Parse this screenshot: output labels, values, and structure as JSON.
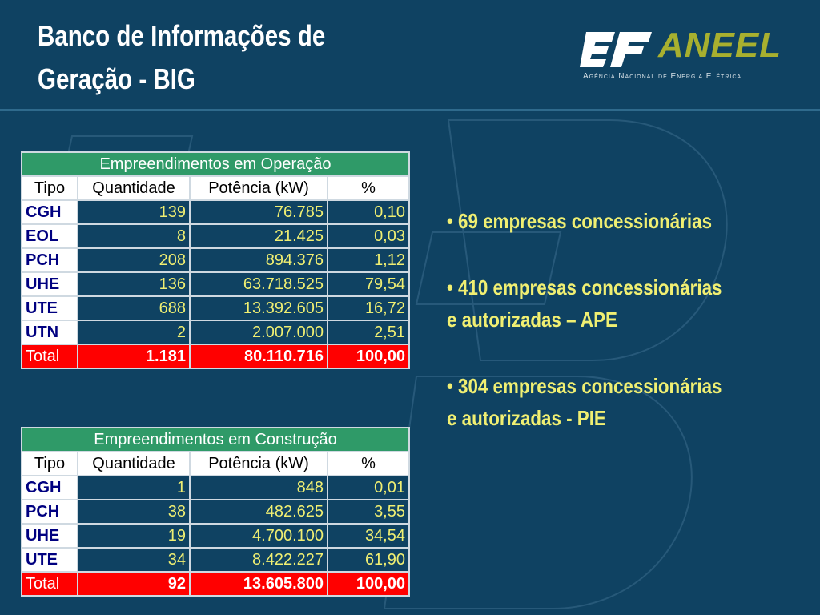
{
  "header": {
    "title_line1": "Banco de Informações de",
    "title_line2": "Geração - BIG"
  },
  "logo": {
    "name": "ANEEL",
    "subtitle": "Agência Nacional de Energia Elétrica",
    "mark_icon": "aneel-ef-mark-icon"
  },
  "operacao": {
    "caption": "Empreendimentos em Operação",
    "headers": [
      "Tipo",
      "Quantidade",
      "Potência (kW)",
      "%"
    ],
    "rows": [
      [
        "CGH",
        "139",
        "76.785",
        "0,10"
      ],
      [
        "EOL",
        "8",
        "21.425",
        "0,03"
      ],
      [
        "PCH",
        "208",
        "894.376",
        "1,12"
      ],
      [
        "UHE",
        "136",
        "63.718.525",
        "79,54"
      ],
      [
        "UTE",
        "688",
        "13.392.605",
        "16,72"
      ],
      [
        "UTN",
        "2",
        "2.007.000",
        "2,51"
      ]
    ],
    "total": [
      "Total",
      "1.181",
      "80.110.716",
      "100,00"
    ]
  },
  "construcao": {
    "caption": "Empreendimentos em Construção",
    "headers": [
      "Tipo",
      "Quantidade",
      "Potência (kW)",
      "%"
    ],
    "rows": [
      [
        "CGH",
        "1",
        "848",
        "0,01"
      ],
      [
        "PCH",
        "38",
        "482.625",
        "3,55"
      ],
      [
        "UHE",
        "19",
        "4.700.100",
        "34,54"
      ],
      [
        "UTE",
        "34",
        "8.422.227",
        "61,90"
      ]
    ],
    "total": [
      "Total",
      "92",
      "13.605.800",
      "100,00"
    ]
  },
  "bullets": [
    {
      "line1": "• 69 empresas concessionárias",
      "line2": ""
    },
    {
      "line1": "• 410 empresas concessionárias",
      "line2": "e autorizadas – APE"
    },
    {
      "line1": "• 304 empresas concessionárias",
      "line2": "e autorizadas - PIE"
    }
  ],
  "colors": {
    "background": "#0f4262",
    "caption_bg": "#2f9a68",
    "value_text": "#f0ef72",
    "type_text": "#000080",
    "total_bg": "#ff0000",
    "logo_text": "#a8b02f"
  }
}
